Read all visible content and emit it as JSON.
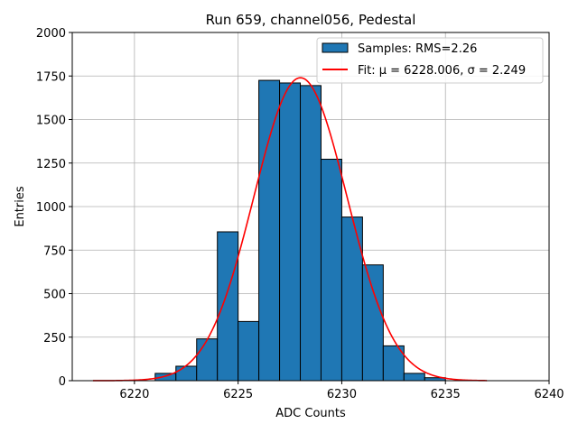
{
  "chart_data": {
    "type": "bar",
    "title": "Run 659, channel056, Pedestal",
    "xlabel": "ADC Counts",
    "ylabel": "Entries",
    "xlim": [
      6217,
      6240
    ],
    "ylim": [
      0,
      2000
    ],
    "grid": true,
    "legend_position": "top-right",
    "x_ticks": [
      6220,
      6225,
      6230,
      6235,
      6240
    ],
    "y_ticks": [
      0,
      250,
      500,
      750,
      1000,
      1250,
      1500,
      1750,
      2000
    ],
    "bin_width": 1,
    "bins": {
      "left_edges": [
        6221,
        6222,
        6223,
        6224,
        6225,
        6226,
        6227,
        6228,
        6229,
        6230,
        6231,
        6232,
        6233,
        6234
      ],
      "values": [
        42,
        83,
        240,
        855,
        340,
        1725,
        1710,
        1695,
        1272,
        940,
        665,
        200,
        42,
        17
      ]
    },
    "fit": {
      "mu": 6228.006,
      "sigma": 2.249,
      "amplitude": 1740,
      "x_range": [
        6218,
        6237
      ]
    },
    "legend": {
      "samples": "Samples: RMS=2.26",
      "fit": "Fit: μ = 6228.006, σ = 2.249"
    },
    "colors": {
      "bar": "#1f77b4",
      "fit": "#ff0000",
      "grid": "#b0b0b0"
    }
  }
}
